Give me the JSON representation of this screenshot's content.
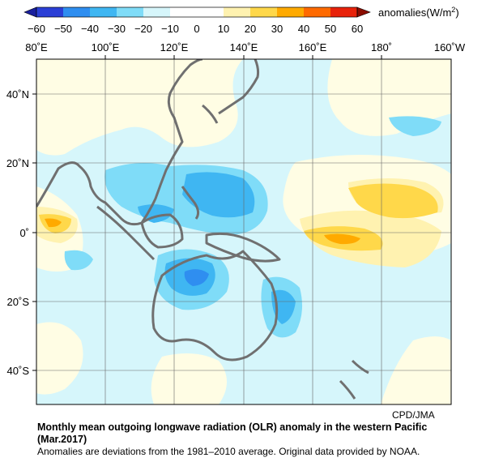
{
  "colorbar": {
    "ticks": [
      "−60",
      "−50",
      "−40",
      "−30",
      "−20",
      "−10",
      "0",
      "10",
      "20",
      "30",
      "40",
      "50",
      "60"
    ],
    "units_prefix": "anomalies(W/m",
    "units_sup": "2",
    "units_suffix": ")",
    "colors": [
      "#2b3fd6",
      "#2f8ef0",
      "#3fb6f2",
      "#7fdcf8",
      "#d6f6fb",
      "#fffde4",
      "#fff2b0",
      "#ffd84a",
      "#ffaa00",
      "#ff6a00",
      "#e8220a"
    ]
  },
  "axes": {
    "lon_labels": [
      "80˚E",
      "100˚E",
      "120˚E",
      "140˚E",
      "160˚E",
      "180˚",
      "160˚W"
    ],
    "lat_labels": [
      "40˚N",
      "20˚N",
      "0˚",
      "20˚S",
      "40˚S"
    ]
  },
  "credit": "CPD/JMA",
  "caption": {
    "title": "Monthly mean outgoing longwave radiation (OLR) anomaly in the western Pacific (Mar.2017)",
    "note": "Anomalies are deviations from the 1981–2010 average. Original data provided by NOAA."
  }
}
